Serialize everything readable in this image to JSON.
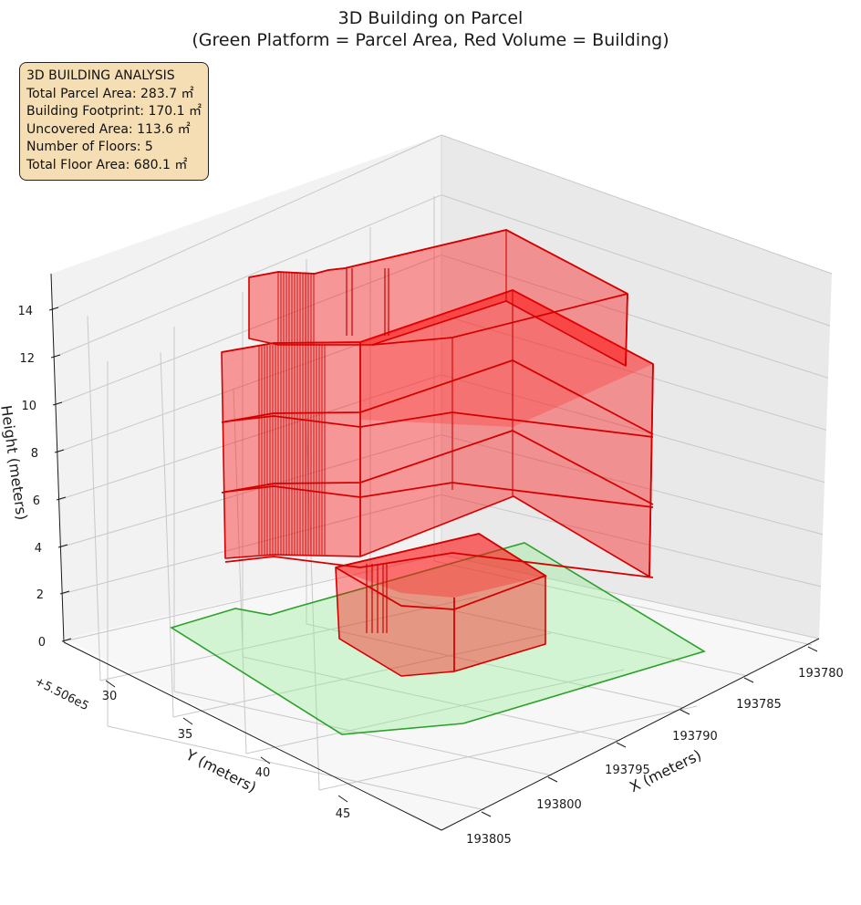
{
  "chart_data": {
    "type": "3d-polygons",
    "title_lines": [
      "3D Building on Parcel",
      "(Green Platform = Parcel Area, Red Volume = Building)"
    ],
    "xlabel": "X (meters)",
    "ylabel": "Y (meters)",
    "zlabel": "Height (meters)",
    "y_offset_text": "+5.506e5",
    "x_ticks": [
      "193780",
      "193785",
      "193790",
      "193795",
      "193800",
      "193805"
    ],
    "y_ticks": [
      "30",
      "35",
      "40",
      "45"
    ],
    "z_ticks": [
      "0",
      "2",
      "4",
      "6",
      "8",
      "10",
      "12",
      "14"
    ],
    "grid": true,
    "colors": {
      "parcel_fill": "#90ee90",
      "parcel_edge": "#2ca02c",
      "building_fill": "#ff0000",
      "building_edge": "#d40000",
      "pane": "#f2f2f2",
      "info_bg": "#f5deb3"
    }
  },
  "info_box": {
    "lines": [
      "3D BUILDING ANALYSIS",
      "Total Parcel Area: 283.7 ㎡",
      "Building Footprint: 170.1 ㎡",
      "Uncovered Area: 113.6 ㎡",
      "Number of Floors: 5",
      "Total Floor Area: 680.1 ㎡"
    ]
  }
}
